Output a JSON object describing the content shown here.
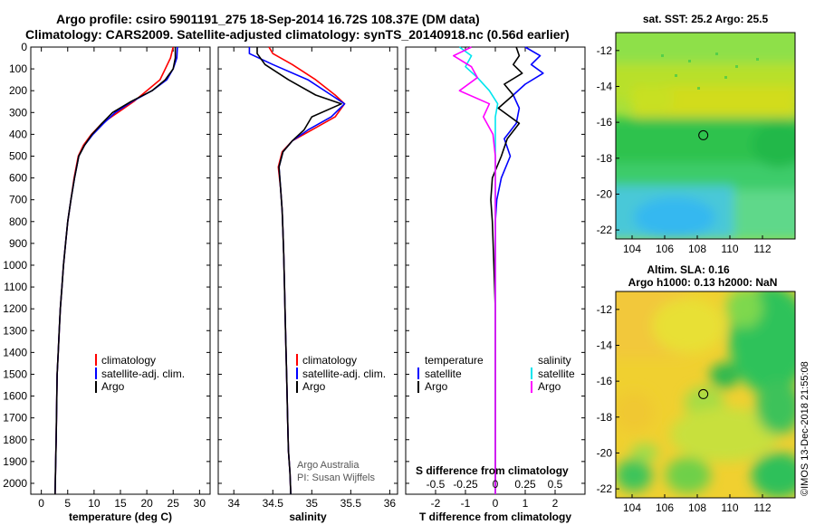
{
  "title": {
    "line1": "Argo profile: csiro 5901191_275 18-Sep-2014 16.72S 108.37E (DM data)",
    "line2": "Climatology: CARS2009. Satellite-adjusted climatology: synTS_20140918.nc (0.56d earlier)"
  },
  "colors": {
    "climatology": "#ff0000",
    "satellite": "#0000ff",
    "argo": "#000000",
    "satellite_s": "#00e5ee",
    "argo_s": "#ff00ff"
  },
  "depth_ticks": [
    0,
    100,
    200,
    300,
    400,
    500,
    600,
    700,
    800,
    900,
    1000,
    1100,
    1200,
    1300,
    1400,
    1500,
    1600,
    1700,
    1800,
    1900,
    2000
  ],
  "credit": {
    "line1": "Argo Australia",
    "line2": "PI: Susan Wijffels"
  },
  "stamp": "©IMOS 13-Dec-2018 21:55:08",
  "chart_data": [
    {
      "type": "line",
      "name": "temperature",
      "xlabel": "temperature (deg C)",
      "ylabel": "",
      "xlim": [
        -2,
        32
      ],
      "ylim": [
        0,
        2050
      ],
      "xticks": [
        0,
        5,
        10,
        15,
        20,
        25,
        30
      ],
      "legend_placement": "lower-right",
      "legend": [
        "climatology",
        "satellite-adj. clim.",
        "Argo"
      ],
      "series": [
        {
          "name": "climatology",
          "color": "#ff0000",
          "x": [
            25.0,
            24.5,
            23.5,
            22.5,
            20.0,
            17.5,
            14.5,
            11.5,
            9.5,
            8.0,
            7.0,
            6.2,
            5.6,
            5.0,
            4.6,
            4.2,
            3.9,
            3.6,
            3.4,
            3.2,
            3.0,
            2.8,
            2.6
          ],
          "y": [
            0,
            50,
            100,
            150,
            200,
            250,
            300,
            350,
            400,
            450,
            500,
            600,
            700,
            800,
            900,
            1000,
            1100,
            1200,
            1300,
            1400,
            1500,
            1800,
            2050
          ]
        },
        {
          "name": "satellite-adj. clim.",
          "color": "#0000ff",
          "x": [
            25.8,
            25.7,
            25.0,
            23.8,
            21.0,
            17.2,
            14.0,
            11.8,
            9.8,
            8.2,
            7.1,
            6.3,
            5.6,
            5.0,
            4.6,
            4.2,
            3.9,
            3.6,
            3.4,
            3.2,
            3.0,
            2.8,
            2.6
          ],
          "y": [
            0,
            50,
            100,
            150,
            200,
            250,
            300,
            350,
            400,
            450,
            500,
            600,
            700,
            800,
            900,
            1000,
            1100,
            1200,
            1300,
            1400,
            1500,
            1800,
            2050
          ]
        },
        {
          "name": "Argo",
          "color": "#000000",
          "x": [
            25.4,
            25.4,
            25.0,
            23.5,
            21.0,
            17.0,
            13.5,
            11.5,
            9.6,
            8.2,
            7.1,
            6.3,
            5.6,
            5.0,
            4.6,
            4.2,
            3.9,
            3.6,
            3.4,
            3.2,
            3.0,
            2.8,
            2.6
          ],
          "y": [
            0,
            50,
            100,
            150,
            200,
            250,
            300,
            350,
            400,
            450,
            500,
            600,
            700,
            800,
            900,
            1000,
            1100,
            1200,
            1300,
            1400,
            1500,
            1800,
            2050
          ]
        }
      ]
    },
    {
      "type": "line",
      "name": "salinity",
      "xlabel": "salinity",
      "ylabel": "",
      "xlim": [
        33.8,
        36.1
      ],
      "ylim": [
        0,
        2050
      ],
      "xticks": [
        34,
        34.5,
        35,
        35.5,
        36
      ],
      "xticklabels": [
        "34",
        "34.5",
        "35",
        "35.5",
        "36"
      ],
      "legend_placement": "lower-right",
      "legend": [
        "climatology",
        "satellite-adj. clim.",
        "Argo"
      ],
      "series": [
        {
          "name": "climatology",
          "color": "#ff0000",
          "x": [
            34.45,
            34.5,
            34.75,
            35.05,
            35.3,
            35.42,
            35.3,
            35.0,
            34.75,
            34.62,
            34.57,
            34.6,
            34.62,
            34.63,
            34.64,
            34.65,
            34.66,
            34.67,
            34.68,
            34.69,
            34.7,
            34.72,
            34.73
          ],
          "y": [
            0,
            30,
            80,
            150,
            220,
            260,
            320,
            380,
            430,
            480,
            550,
            650,
            750,
            850,
            950,
            1100,
            1250,
            1400,
            1550,
            1700,
            1850,
            1950,
            2050
          ]
        },
        {
          "name": "satellite-adj. clim.",
          "color": "#0000ff",
          "x": [
            34.2,
            34.2,
            34.5,
            34.95,
            35.25,
            35.42,
            35.25,
            34.95,
            34.75,
            34.63,
            34.58,
            34.6,
            34.62,
            34.63,
            34.64,
            34.65,
            34.66,
            34.67,
            34.68,
            34.69,
            34.7,
            34.72,
            34.73
          ],
          "y": [
            0,
            30,
            80,
            150,
            220,
            260,
            320,
            380,
            430,
            480,
            550,
            650,
            750,
            850,
            950,
            1100,
            1250,
            1400,
            1550,
            1700,
            1850,
            1950,
            2050
          ]
        },
        {
          "name": "Argo",
          "color": "#000000",
          "x": [
            34.3,
            34.3,
            34.4,
            34.7,
            35.05,
            35.38,
            35.0,
            34.9,
            34.75,
            34.63,
            34.58,
            34.6,
            34.62,
            34.63,
            34.64,
            34.65,
            34.66,
            34.67,
            34.68,
            34.69,
            34.7,
            34.72,
            34.73
          ],
          "y": [
            0,
            30,
            80,
            150,
            220,
            260,
            320,
            380,
            430,
            480,
            550,
            650,
            750,
            850,
            950,
            1100,
            1250,
            1400,
            1550,
            1700,
            1850,
            1950,
            2050
          ]
        }
      ]
    },
    {
      "type": "line",
      "name": "differences",
      "xlabel": "T difference from climatology",
      "xlabel2": "S difference from climatology",
      "xlim": [
        -3,
        3
      ],
      "ylim": [
        0,
        2050
      ],
      "xticks": [
        -2,
        -1,
        0,
        1,
        2
      ],
      "s_ticks": [
        -0.5,
        -0.25,
        0,
        0.25,
        0.5
      ],
      "s_ticklabels": [
        "-0.5",
        "-0.25",
        "0",
        "0.25",
        "0.5"
      ],
      "legend_title_t": "temperature",
      "legend_title_s": "salinity",
      "legend_t": [
        "satellite",
        "Argo"
      ],
      "legend_s": [
        "satellite",
        "Argo"
      ],
      "series": [
        {
          "name": "T satellite",
          "color": "#0000ff",
          "x": [
            1.0,
            1.5,
            1.2,
            1.6,
            1.0,
            0.6,
            0.8,
            0.7,
            0.3,
            0.5,
            0.2,
            0.05,
            0.0,
            0.0,
            0.0,
            0.0,
            0.0,
            0.0
          ],
          "y": [
            0,
            40,
            80,
            120,
            170,
            220,
            280,
            350,
            420,
            500,
            600,
            700,
            800,
            1000,
            1200,
            1500,
            1800,
            2050
          ]
        },
        {
          "name": "T Argo",
          "color": "#000000",
          "x": [
            0.7,
            0.8,
            0.6,
            0.9,
            0.3,
            0.6,
            0.1,
            0.8,
            0.4,
            0.2,
            -0.1,
            -0.15,
            -0.1,
            -0.05,
            0.0,
            0.0,
            0.0,
            0.0
          ],
          "y": [
            0,
            40,
            80,
            120,
            170,
            220,
            280,
            350,
            420,
            500,
            600,
            700,
            800,
            1000,
            1200,
            1500,
            1800,
            2050
          ]
        },
        {
          "name": "S satellite",
          "color": "#00e5ee",
          "x": [
            -0.3,
            -0.2,
            -0.25,
            -0.15,
            -0.05,
            0.02,
            0.0,
            0.0,
            0.0,
            0.0,
            0.0,
            0.0,
            0.0,
            0.0,
            0.0,
            0.0
          ],
          "y": [
            0,
            40,
            90,
            140,
            200,
            260,
            320,
            400,
            500,
            600,
            700,
            900,
            1200,
            1500,
            1800,
            2050
          ]
        },
        {
          "name": "S Argo",
          "color": "#ff00ff",
          "x": [
            -0.2,
            -0.35,
            -0.2,
            -0.15,
            -0.3,
            -0.05,
            -0.1,
            -0.02,
            0.0,
            0.0,
            0.0,
            0.0,
            0.0,
            0.0,
            0.0,
            0.0
          ],
          "y": [
            0,
            40,
            90,
            140,
            200,
            260,
            320,
            400,
            500,
            600,
            700,
            900,
            1200,
            1500,
            1800,
            2050
          ]
        }
      ]
    },
    {
      "type": "heatmap",
      "name": "sst-map",
      "title": "sat. SST: 25.2 Argo: 25.5",
      "xlim": [
        103,
        114
      ],
      "ylim": [
        -22.5,
        -11
      ],
      "xticks": [
        104,
        106,
        108,
        110,
        112
      ],
      "yticks": [
        -12,
        -14,
        -16,
        -18,
        -20,
        -22
      ],
      "marker": {
        "lon": 108.37,
        "lat": -16.72
      }
    },
    {
      "type": "heatmap",
      "name": "sla-map",
      "title_line1": "Altim. SLA: 0.16",
      "title_line2": "Argo h1000: 0.13 h2000: NaN",
      "xlim": [
        103,
        114
      ],
      "ylim": [
        -22.5,
        -11
      ],
      "xticks": [
        104,
        106,
        108,
        110,
        112
      ],
      "yticks": [
        -12,
        -14,
        -16,
        -18,
        -20,
        -22
      ],
      "marker": {
        "lon": 108.37,
        "lat": -16.72
      }
    }
  ]
}
